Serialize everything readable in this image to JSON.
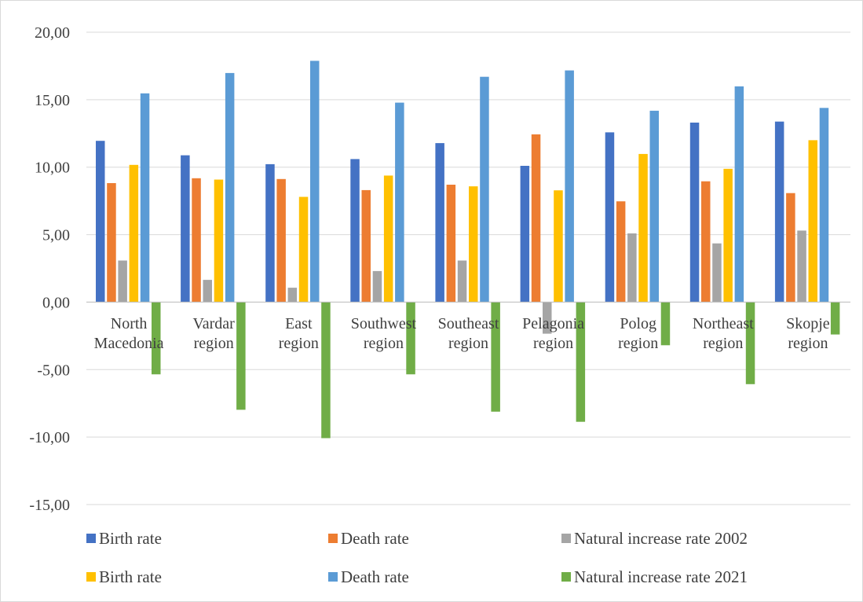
{
  "chart_data": {
    "type": "bar",
    "categories": [
      [
        "North",
        "Macedonia"
      ],
      [
        "Vardar",
        "region"
      ],
      [
        "East",
        "region"
      ],
      [
        "Southwest",
        "region"
      ],
      [
        "Southeast",
        "region"
      ],
      [
        "Pelagonia",
        "region"
      ],
      [
        "Polog",
        "region"
      ],
      [
        "Northeast",
        "region"
      ],
      [
        "Skopje",
        "region"
      ]
    ],
    "series": [
      {
        "name": "Birth rate",
        "color": "#4472c4",
        "values": [
          11.95,
          10.88,
          10.22,
          10.6,
          11.78,
          10.1,
          12.58,
          13.3,
          13.38
        ]
      },
      {
        "name": "Death rate",
        "color": "#ed7d31",
        "values": [
          8.82,
          9.18,
          9.12,
          8.3,
          8.7,
          12.43,
          7.47,
          8.95,
          8.08
        ]
      },
      {
        "name": "Natural increase rate 2002",
        "color": "#a5a5a5",
        "values": [
          3.08,
          1.65,
          1.07,
          2.3,
          3.08,
          -2.34,
          5.09,
          4.35,
          5.3
        ]
      },
      {
        "name": "Birth rate",
        "color": "#ffc000",
        "values": [
          10.17,
          9.08,
          7.8,
          9.38,
          8.58,
          8.28,
          10.98,
          9.88,
          12.0
        ]
      },
      {
        "name": "Death rate",
        "color": "#5b9bd5",
        "values": [
          15.47,
          16.98,
          17.88,
          14.78,
          16.7,
          17.17,
          14.18,
          15.99,
          14.39
        ]
      },
      {
        "name": "Natural increase rate 2021",
        "color": "#70ad47",
        "values": [
          -5.35,
          -7.98,
          -10.08,
          -5.35,
          -8.12,
          -8.87,
          -3.2,
          -6.08,
          -2.4
        ]
      }
    ],
    "yticks": [
      "20,00",
      "15,00",
      "10,00",
      "5,00",
      "0,00",
      "-5,00",
      "-10,00",
      "-15,00"
    ],
    "ylim": [
      -15,
      20
    ],
    "grid": true,
    "legend_position": "bottom"
  }
}
